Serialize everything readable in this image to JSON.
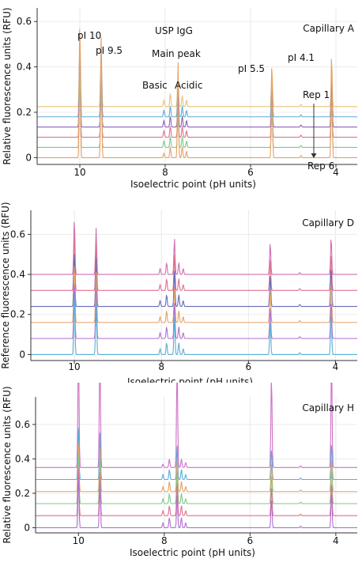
{
  "chart_data": [
    {
      "type": "line",
      "title": "USP IgG",
      "panel_label": "Capillary A",
      "xlabel": "Isoelectric point (pH units)",
      "ylabel": "Relative fluorescence units (RFU)",
      "xlim": [
        11,
        3.5
      ],
      "ylim": [
        -0.03,
        0.66
      ],
      "x_ticks": [
        10,
        8,
        6,
        4
      ],
      "y_ticks": [
        0,
        0.2,
        0.4,
        0.6
      ],
      "y_tick_labels": [
        "0",
        "0.2",
        "0.4",
        "0.6"
      ],
      "grid": true,
      "replicate_offset": 0.045,
      "annotations": [
        {
          "text": "pI 10",
          "x": 10.0,
          "y": 0.61
        },
        {
          "text": "pI 9.5",
          "x": 9.5,
          "y": 0.53
        },
        {
          "text": "Main peak",
          "x": 7.7,
          "y": 0.51
        },
        {
          "text": "Basic",
          "x": 7.95,
          "y": 0.36
        },
        {
          "text": "Acidic",
          "x": 7.4,
          "y": 0.36
        },
        {
          "text": "pI 5.5",
          "x": 5.5,
          "y": 0.43
        },
        {
          "text": "pI 4.1",
          "x": 4.1,
          "y": 0.49
        },
        {
          "text": "Rep 1",
          "x": 3.85,
          "y": 0.3
        },
        {
          "text": "Rep 6",
          "x": 3.85,
          "y": -0.04
        }
      ],
      "series": [
        {
          "color": "#e8c27a",
          "peaks": [
            [
              10.0,
              0.37
            ],
            [
              9.5,
              0.3
            ],
            [
              8.03,
              0.03
            ],
            [
              7.88,
              0.06
            ],
            [
              7.7,
              0.15
            ],
            [
              7.6,
              0.05
            ],
            [
              7.5,
              0.03
            ],
            [
              5.5,
              0.18
            ],
            [
              4.82,
              0.01
            ],
            [
              4.1,
              0.2
            ]
          ]
        },
        {
          "color": "#5aaed6",
          "peaks": [
            [
              10.0,
              0.34
            ],
            [
              9.5,
              0.29
            ],
            [
              8.03,
              0.03
            ],
            [
              7.88,
              0.05
            ],
            [
              7.7,
              0.14
            ],
            [
              7.6,
              0.05
            ],
            [
              7.5,
              0.03
            ],
            [
              5.5,
              0.17
            ],
            [
              4.82,
              0.01
            ],
            [
              4.1,
              0.19
            ]
          ]
        },
        {
          "color": "#8a62b8",
          "peaks": [
            [
              10.0,
              0.36
            ],
            [
              9.5,
              0.3
            ],
            [
              8.03,
              0.03
            ],
            [
              7.88,
              0.05
            ],
            [
              7.7,
              0.14
            ],
            [
              7.6,
              0.05
            ],
            [
              7.5,
              0.03
            ],
            [
              5.5,
              0.18
            ],
            [
              4.82,
              0.01
            ],
            [
              4.1,
              0.2
            ]
          ]
        },
        {
          "color": "#e07090",
          "peaks": [
            [
              10.0,
              0.35
            ],
            [
              9.5,
              0.3
            ],
            [
              8.03,
              0.03
            ],
            [
              7.88,
              0.05
            ],
            [
              7.7,
              0.14
            ],
            [
              7.6,
              0.05
            ],
            [
              7.5,
              0.03
            ],
            [
              5.5,
              0.17
            ],
            [
              4.82,
              0.01
            ],
            [
              4.1,
              0.19
            ]
          ]
        },
        {
          "color": "#7ec98a",
          "peaks": [
            [
              10.0,
              0.37
            ],
            [
              9.5,
              0.31
            ],
            [
              8.03,
              0.03
            ],
            [
              7.88,
              0.05
            ],
            [
              7.7,
              0.15
            ],
            [
              7.6,
              0.05
            ],
            [
              7.5,
              0.03
            ],
            [
              5.5,
              0.18
            ],
            [
              4.82,
              0.01
            ],
            [
              4.1,
              0.2
            ]
          ]
        },
        {
          "color": "#e8a066",
          "peaks": [
            [
              10.0,
              0.6
            ],
            [
              9.5,
              0.53
            ],
            [
              8.03,
              0.02
            ],
            [
              7.88,
              0.05
            ],
            [
              7.7,
              0.43
            ],
            [
              7.6,
              0.05
            ],
            [
              7.5,
              0.03
            ],
            [
              5.5,
              0.42
            ],
            [
              4.82,
              0.01
            ],
            [
              4.1,
              0.48
            ]
          ]
        }
      ]
    },
    {
      "type": "line",
      "title": "",
      "panel_label": "Capillary D",
      "xlabel": "Isoelectric point (pH units)",
      "ylabel": "Reference fluorescence units (RFU)",
      "xlim": [
        11,
        3.5
      ],
      "ylim": [
        -0.03,
        0.72
      ],
      "x_ticks": [
        10,
        8,
        6,
        4
      ],
      "y_ticks": [
        0,
        0.2,
        0.4,
        0.6
      ],
      "y_tick_labels": [
        "0",
        "0.2",
        "0.4",
        "0.6"
      ],
      "grid": true,
      "replicate_offset": 0.08,
      "annotations": [],
      "series": [
        {
          "color": "#d070b0",
          "peaks": [
            [
              10.0,
              0.28
            ],
            [
              9.5,
              0.23
            ],
            [
              8.03,
              0.03
            ],
            [
              7.88,
              0.06
            ],
            [
              7.7,
              0.18
            ],
            [
              7.6,
              0.06
            ],
            [
              7.5,
              0.03
            ],
            [
              5.5,
              0.16
            ],
            [
              4.82,
              0.01
            ],
            [
              4.1,
              0.19
            ]
          ]
        },
        {
          "color": "#e07090",
          "peaks": [
            [
              10.0,
              0.29
            ],
            [
              9.5,
              0.24
            ],
            [
              8.03,
              0.03
            ],
            [
              7.88,
              0.06
            ],
            [
              7.7,
              0.18
            ],
            [
              7.6,
              0.06
            ],
            [
              7.5,
              0.03
            ],
            [
              5.5,
              0.16
            ],
            [
              4.82,
              0.01
            ],
            [
              4.1,
              0.19
            ]
          ]
        },
        {
          "color": "#6a6ab8",
          "peaks": [
            [
              10.0,
              0.28
            ],
            [
              9.5,
              0.24
            ],
            [
              8.03,
              0.03
            ],
            [
              7.88,
              0.06
            ],
            [
              7.7,
              0.18
            ],
            [
              7.6,
              0.06
            ],
            [
              7.5,
              0.03
            ],
            [
              5.5,
              0.16
            ],
            [
              4.82,
              0.01
            ],
            [
              4.1,
              0.2
            ]
          ]
        },
        {
          "color": "#e8a066",
          "peaks": [
            [
              10.0,
              0.3
            ],
            [
              9.5,
              0.25
            ],
            [
              8.03,
              0.03
            ],
            [
              7.88,
              0.06
            ],
            [
              7.7,
              0.18
            ],
            [
              7.6,
              0.06
            ],
            [
              7.5,
              0.03
            ],
            [
              5.5,
              0.17
            ],
            [
              4.82,
              0.01
            ],
            [
              4.1,
              0.2
            ]
          ]
        },
        {
          "color": "#b070d0",
          "peaks": [
            [
              10.0,
              0.29
            ],
            [
              9.5,
              0.24
            ],
            [
              8.03,
              0.03
            ],
            [
              7.88,
              0.06
            ],
            [
              7.7,
              0.18
            ],
            [
              7.6,
              0.06
            ],
            [
              7.5,
              0.03
            ],
            [
              5.5,
              0.16
            ],
            [
              4.82,
              0.01
            ],
            [
              4.1,
              0.19
            ]
          ]
        },
        {
          "color": "#5aaed6",
          "peaks": [
            [
              10.0,
              0.31
            ],
            [
              9.5,
              0.26
            ],
            [
              8.03,
              0.03
            ],
            [
              7.88,
              0.06
            ],
            [
              7.7,
              0.19
            ],
            [
              7.6,
              0.06
            ],
            [
              7.5,
              0.03
            ],
            [
              5.5,
              0.17
            ],
            [
              4.82,
              0.01
            ],
            [
              4.1,
              0.21
            ]
          ]
        }
      ]
    },
    {
      "type": "line",
      "title": "",
      "panel_label": "Capillary H",
      "xlabel": "Isoelectric point (pH units)",
      "ylabel": "Relative fluorescence units (RFU)",
      "xlim": [
        11,
        3.5
      ],
      "ylim": [
        -0.03,
        0.76
      ],
      "x_ticks": [
        10,
        8,
        6,
        4
      ],
      "y_ticks": [
        0,
        0.2,
        0.4,
        0.6
      ],
      "y_tick_labels": [
        "0",
        "0.2",
        "0.4",
        "0.6"
      ],
      "grid": true,
      "replicate_offset": 0.07,
      "annotations": [],
      "series": [
        {
          "color": "#d070c8",
          "peaks": [
            [
              10.0,
              0.75
            ],
            [
              9.5,
              0.73
            ],
            [
              8.03,
              0.02
            ],
            [
              7.88,
              0.05
            ],
            [
              7.7,
              0.63
            ],
            [
              7.6,
              0.05
            ],
            [
              7.5,
              0.03
            ],
            [
              5.5,
              0.55
            ],
            [
              4.82,
              0.01
            ],
            [
              4.1,
              0.62
            ]
          ]
        },
        {
          "color": "#5aaed6",
          "peaks": [
            [
              10.0,
              0.32
            ],
            [
              9.5,
              0.27
            ],
            [
              8.03,
              0.03
            ],
            [
              7.88,
              0.06
            ],
            [
              7.7,
              0.2
            ],
            [
              7.6,
              0.06
            ],
            [
              7.5,
              0.03
            ],
            [
              5.5,
              0.18
            ],
            [
              4.82,
              0.01
            ],
            [
              4.1,
              0.22
            ]
          ]
        },
        {
          "color": "#e8a066",
          "peaks": [
            [
              10.0,
              0.3
            ],
            [
              9.5,
              0.25
            ],
            [
              8.03,
              0.03
            ],
            [
              7.88,
              0.06
            ],
            [
              7.7,
              0.19
            ],
            [
              7.6,
              0.06
            ],
            [
              7.5,
              0.03
            ],
            [
              5.5,
              0.17
            ],
            [
              4.82,
              0.01
            ],
            [
              4.1,
              0.2
            ]
          ]
        },
        {
          "color": "#7ec98a",
          "peaks": [
            [
              10.0,
              0.31
            ],
            [
              9.5,
              0.26
            ],
            [
              8.03,
              0.03
            ],
            [
              7.88,
              0.06
            ],
            [
              7.7,
              0.19
            ],
            [
              7.6,
              0.06
            ],
            [
              7.5,
              0.03
            ],
            [
              5.5,
              0.17
            ],
            [
              4.82,
              0.01
            ],
            [
              4.1,
              0.21
            ]
          ]
        },
        {
          "color": "#e07090",
          "peaks": [
            [
              10.0,
              0.3
            ],
            [
              9.5,
              0.25
            ],
            [
              8.03,
              0.03
            ],
            [
              7.88,
              0.06
            ],
            [
              7.7,
              0.19
            ],
            [
              7.6,
              0.06
            ],
            [
              7.5,
              0.03
            ],
            [
              5.5,
              0.17
            ],
            [
              4.82,
              0.01
            ],
            [
              4.1,
              0.2
            ]
          ]
        },
        {
          "color": "#b070d0",
          "peaks": [
            [
              10.0,
              0.31
            ],
            [
              9.5,
              0.26
            ],
            [
              8.03,
              0.03
            ],
            [
              7.88,
              0.06
            ],
            [
              7.7,
              0.19
            ],
            [
              7.6,
              0.06
            ],
            [
              7.5,
              0.03
            ],
            [
              5.5,
              0.17
            ],
            [
              4.82,
              0.01
            ],
            [
              4.1,
              0.21
            ]
          ]
        }
      ]
    }
  ]
}
